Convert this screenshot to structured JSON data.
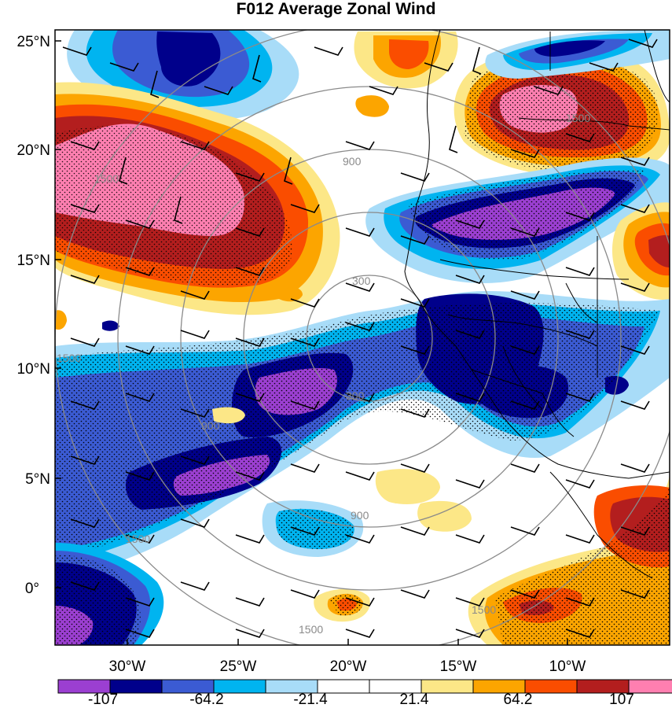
{
  "title": "F012 Average Zonal Wind",
  "lat_labels": [
    "25°N",
    "20°N",
    "15°N",
    "10°N",
    "5°N",
    "0°"
  ],
  "lon_labels": [
    "30°W",
    "25°W",
    "20°W",
    "15°W",
    "10°W"
  ],
  "colorbar": {
    "colors": [
      "#9b3fd1",
      "#00008b",
      "#3b5bd3",
      "#00b4f0",
      "#a8dcf8",
      "#ffffff",
      "#ffffff",
      "#fce787",
      "#fca500",
      "#fa4d00",
      "#b31e1e",
      "#ff7fb0"
    ],
    "labels": [
      "-107",
      "-64.2",
      "-21.4",
      "21.4",
      "64.2",
      "107"
    ]
  },
  "ring_labels": [
    "300",
    "900",
    "1500"
  ],
  "colors": {
    "stipple": "#000000",
    "barb": "#000000",
    "rings": "#8a8a8a",
    "coast": "#000000"
  }
}
